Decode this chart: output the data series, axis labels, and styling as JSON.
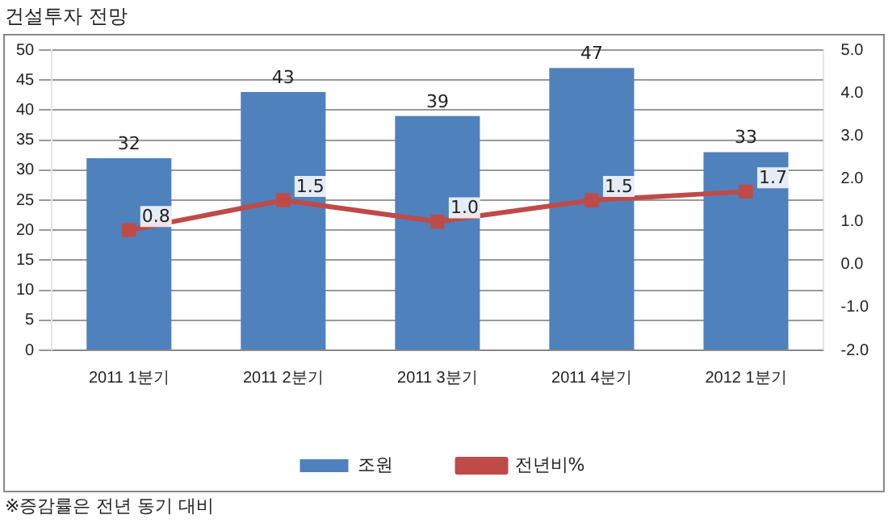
{
  "chart_data": {
    "type": "bar",
    "title": "건설투자 전망",
    "categories": [
      "2011 1분기",
      "2011 2분기",
      "2011 3분기",
      "2011 4분기",
      "2012 1분기"
    ],
    "series": [
      {
        "name": "조원",
        "color": "#4f81bd",
        "values": [
          32,
          43,
          39,
          47,
          33
        ]
      },
      {
        "name": "전년비%",
        "type": "line",
        "axis": "y2",
        "color": "#be4b48",
        "marker": "square",
        "values": [
          0.8,
          1.5,
          1.0,
          1.5,
          1.7
        ],
        "value_labels": [
          "0.8",
          "1.5",
          "1.0",
          "1.5",
          "1.7"
        ]
      }
    ],
    "ylim": [
      0,
      50
    ],
    "yticks": [
      0,
      5,
      10,
      15,
      20,
      25,
      30,
      35,
      40,
      45,
      50
    ],
    "y2lim": [
      -2,
      5
    ],
    "y2ticks": [
      {
        "value": -2,
        "label": "-2.0"
      },
      {
        "value": -1,
        "label": "-1.0"
      },
      {
        "value": 0,
        "label": "0.0"
      },
      {
        "value": 1,
        "label": "1.0"
      },
      {
        "value": 2,
        "label": "2.0"
      },
      {
        "value": 3,
        "label": "3.0"
      },
      {
        "value": 4,
        "label": "4.0"
      },
      {
        "value": 5,
        "label": "5.0"
      }
    ],
    "data_labels": true,
    "grid": "y",
    "legend": "bottom",
    "annotations": [
      "※증감률은 전년 동기 대비"
    ]
  }
}
